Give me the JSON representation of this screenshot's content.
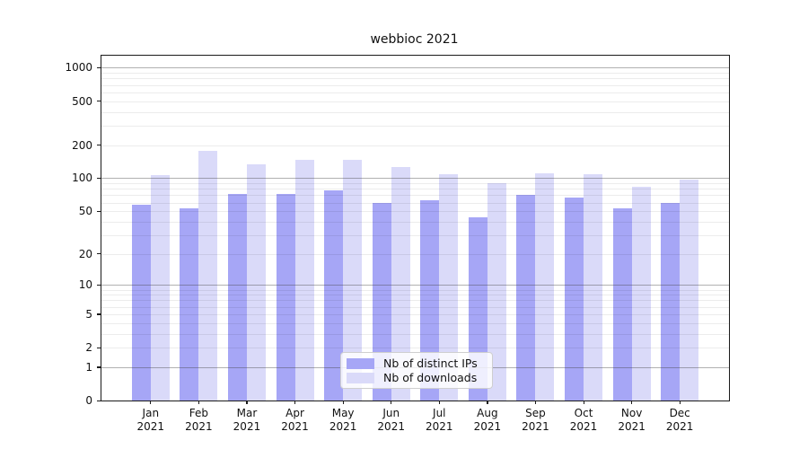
{
  "title": "webbioc 2021",
  "legend": {
    "items": [
      {
        "label": "Nb of distinct IPs",
        "color": "#a6a6f6"
      },
      {
        "label": "Nb of downloads",
        "color": "#dadaf9"
      }
    ]
  },
  "chart_data": {
    "type": "bar",
    "title": "webbioc 2021",
    "categories": [
      "Jan 2021",
      "Feb 2021",
      "Mar 2021",
      "Apr 2021",
      "May 2021",
      "Jun 2021",
      "Jul 2021",
      "Aug 2021",
      "Sep 2021",
      "Oct 2021",
      "Nov 2021",
      "Dec 2021"
    ],
    "x_tick_top": [
      "Jan",
      "Feb",
      "Mar",
      "Apr",
      "May",
      "Jun",
      "Jul",
      "Aug",
      "Sep",
      "Oct",
      "Nov",
      "Dec"
    ],
    "x_tick_bottom": [
      "2021",
      "2021",
      "2021",
      "2021",
      "2021",
      "2021",
      "2021",
      "2021",
      "2021",
      "2021",
      "2021",
      "2021"
    ],
    "series": [
      {
        "name": "Nb of distinct IPs",
        "color": "#a6a6f6",
        "values": [
          57,
          53,
          72,
          72,
          78,
          59,
          63,
          44,
          70,
          66,
          53,
          60
        ]
      },
      {
        "name": "Nb of downloads",
        "color": "#dadaf9",
        "values": [
          107,
          176,
          135,
          146,
          146,
          127,
          108,
          90,
          111,
          108,
          84,
          98
        ]
      }
    ],
    "ylabel": "",
    "xlabel": "",
    "yscale": "log1p",
    "y_ticks": [
      1000,
      500,
      200,
      100,
      50,
      20,
      10,
      5,
      2,
      1,
      0
    ],
    "y_minor_ticks_per_decade": [
      2,
      3,
      4,
      5,
      6,
      7,
      8,
      9
    ],
    "ylim": [
      0,
      1290
    ],
    "grid": true,
    "legend_position": "lower center"
  }
}
